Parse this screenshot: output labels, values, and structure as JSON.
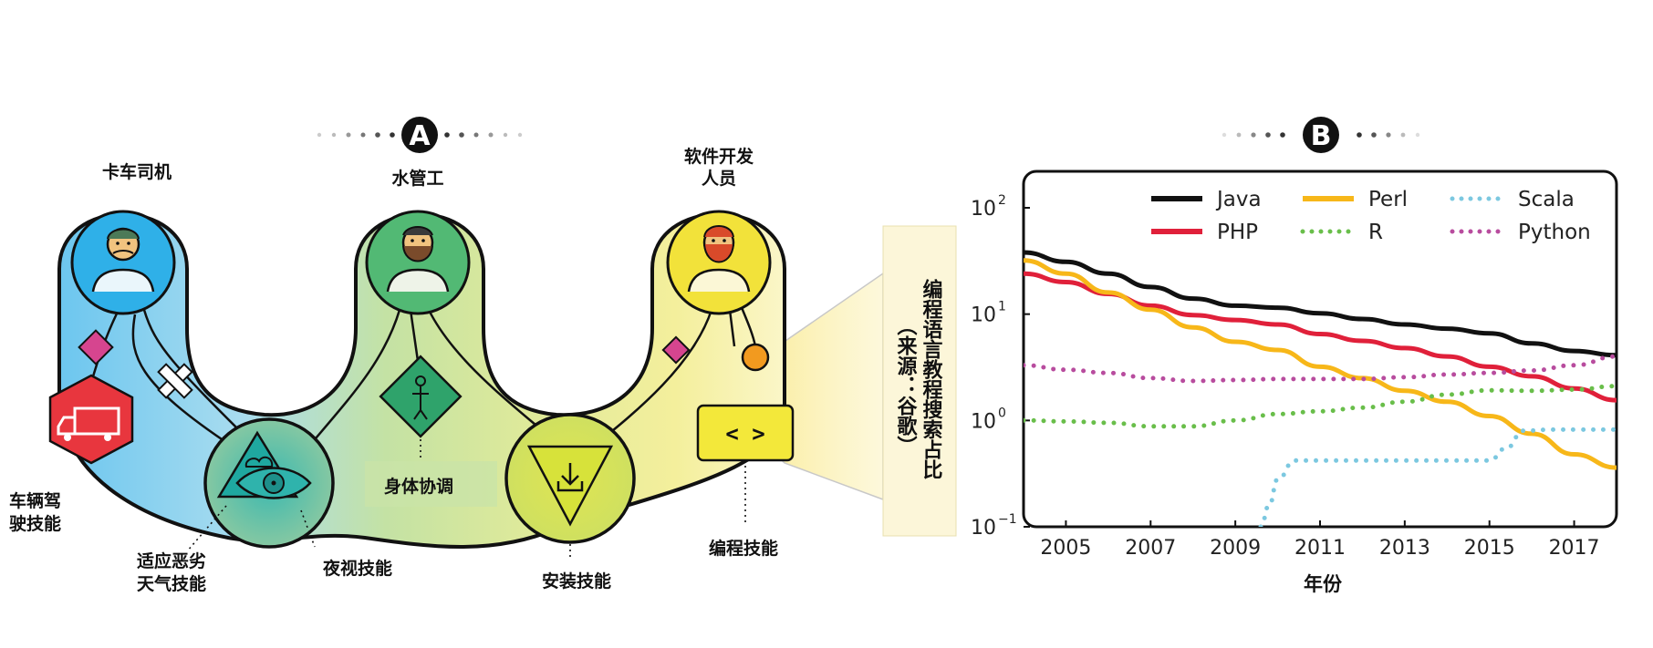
{
  "panel_a": {
    "badge": "A",
    "roles": [
      {
        "name": "卡车司机",
        "color": "#2fb0e8"
      },
      {
        "name": "水管工",
        "color": "#52b974"
      },
      {
        "name": "软件开发人员",
        "color": "#f2e23a"
      }
    ],
    "role3_line1": "软件开发",
    "role3_line2": "人员",
    "skills": {
      "vehicle_line1": "车辆驾",
      "vehicle_line2": "驶技能",
      "weather_line1": "适应恶劣",
      "weather_line2": "天气技能",
      "night": "夜视技能",
      "body": "身体协调",
      "install": "安装技能",
      "coding": "编程技能"
    },
    "code_symbol": "< >",
    "callout": [
      "编程语言教程搜索占比",
      "（来源：谷歌）"
    ]
  },
  "panel_b": {
    "badge": "B"
  },
  "chart_data": {
    "type": "line",
    "xlabel": "年份",
    "ylabel": "",
    "yscale": "log",
    "ylim": [
      0.1,
      100
    ],
    "xlim": [
      2004,
      2018
    ],
    "x_ticks": [
      "2005",
      "2007",
      "2009",
      "2011",
      "2013",
      "2015",
      "2017"
    ],
    "y_ticks": [
      {
        "base": "10",
        "exp": "2",
        "value": 100
      },
      {
        "base": "10",
        "exp": "1",
        "value": 10
      },
      {
        "base": "10",
        "exp": "0",
        "value": 1
      },
      {
        "base": "10",
        "exp": "−1",
        "value": 0.1
      }
    ],
    "legend_position": "top",
    "series": [
      {
        "name": "Java",
        "color": "#111111",
        "style": "solid",
        "points": [
          [
            2004,
            38
          ],
          [
            2005,
            31
          ],
          [
            2006,
            24
          ],
          [
            2007,
            18
          ],
          [
            2008,
            14
          ],
          [
            2009,
            12
          ],
          [
            2010,
            11.5
          ],
          [
            2011,
            10.2
          ],
          [
            2012,
            9
          ],
          [
            2013,
            8
          ],
          [
            2014,
            7.3
          ],
          [
            2015,
            6.6
          ],
          [
            2016,
            5.3
          ],
          [
            2017,
            4.5
          ],
          [
            2018,
            4.1
          ]
        ]
      },
      {
        "name": "PHP",
        "color": "#e0203a",
        "style": "solid",
        "points": [
          [
            2004,
            24
          ],
          [
            2005,
            20
          ],
          [
            2006,
            15.5
          ],
          [
            2007,
            12
          ],
          [
            2008,
            9.8
          ],
          [
            2009,
            8.8
          ],
          [
            2010,
            8
          ],
          [
            2011,
            6.5
          ],
          [
            2012,
            5.6
          ],
          [
            2013,
            4.8
          ],
          [
            2014,
            4
          ],
          [
            2015,
            3.2
          ],
          [
            2016,
            2.6
          ],
          [
            2017,
            2
          ],
          [
            2018,
            1.55
          ]
        ]
      },
      {
        "name": "Perl",
        "color": "#f7b719",
        "style": "solid",
        "points": [
          [
            2004,
            32
          ],
          [
            2005,
            24
          ],
          [
            2006,
            16
          ],
          [
            2007,
            11
          ],
          [
            2008,
            7.5
          ],
          [
            2009,
            5.5
          ],
          [
            2010,
            4.6
          ],
          [
            2011,
            3.2
          ],
          [
            2012,
            2.5
          ],
          [
            2013,
            1.9
          ],
          [
            2014,
            1.5
          ],
          [
            2015,
            1.1
          ],
          [
            2016,
            0.75
          ],
          [
            2017,
            0.48
          ],
          [
            2018,
            0.36
          ]
        ]
      },
      {
        "name": "R",
        "color": "#69be4a",
        "style": "dotted",
        "points": [
          [
            2004,
            1
          ],
          [
            2005,
            0.98
          ],
          [
            2006,
            0.95
          ],
          [
            2007,
            0.88
          ],
          [
            2008,
            0.88
          ],
          [
            2009,
            1
          ],
          [
            2010,
            1.15
          ],
          [
            2011,
            1.22
          ],
          [
            2012,
            1.32
          ],
          [
            2013,
            1.5
          ],
          [
            2014,
            1.75
          ],
          [
            2015,
            1.92
          ],
          [
            2016,
            1.9
          ],
          [
            2017,
            1.95
          ],
          [
            2018,
            2.1
          ]
        ]
      },
      {
        "name": "Scala",
        "color": "#7cc8e0",
        "style": "dotted",
        "points": [
          [
            2009.6,
            0.1
          ],
          [
            2009.8,
            0.16
          ],
          [
            2010,
            0.28
          ],
          [
            2010.4,
            0.42
          ],
          [
            2011,
            0.42
          ],
          [
            2012,
            0.42
          ],
          [
            2013,
            0.42
          ],
          [
            2014,
            0.42
          ],
          [
            2015,
            0.42
          ],
          [
            2015.4,
            0.55
          ],
          [
            2015.8,
            0.8
          ],
          [
            2016.5,
            0.82
          ],
          [
            2017,
            0.82
          ],
          [
            2018,
            0.82
          ]
        ]
      },
      {
        "name": "Python",
        "color": "#b84c9e",
        "style": "dotted",
        "points": [
          [
            2004,
            3.3
          ],
          [
            2005,
            3
          ],
          [
            2006,
            2.8
          ],
          [
            2007,
            2.5
          ],
          [
            2008,
            2.35
          ],
          [
            2009,
            2.4
          ],
          [
            2010,
            2.45
          ],
          [
            2011,
            2.45
          ],
          [
            2012,
            2.45
          ],
          [
            2013,
            2.55
          ],
          [
            2014,
            2.7
          ],
          [
            2015,
            2.8
          ],
          [
            2016,
            2.95
          ],
          [
            2017,
            3.3
          ],
          [
            2018,
            4
          ]
        ]
      }
    ]
  }
}
